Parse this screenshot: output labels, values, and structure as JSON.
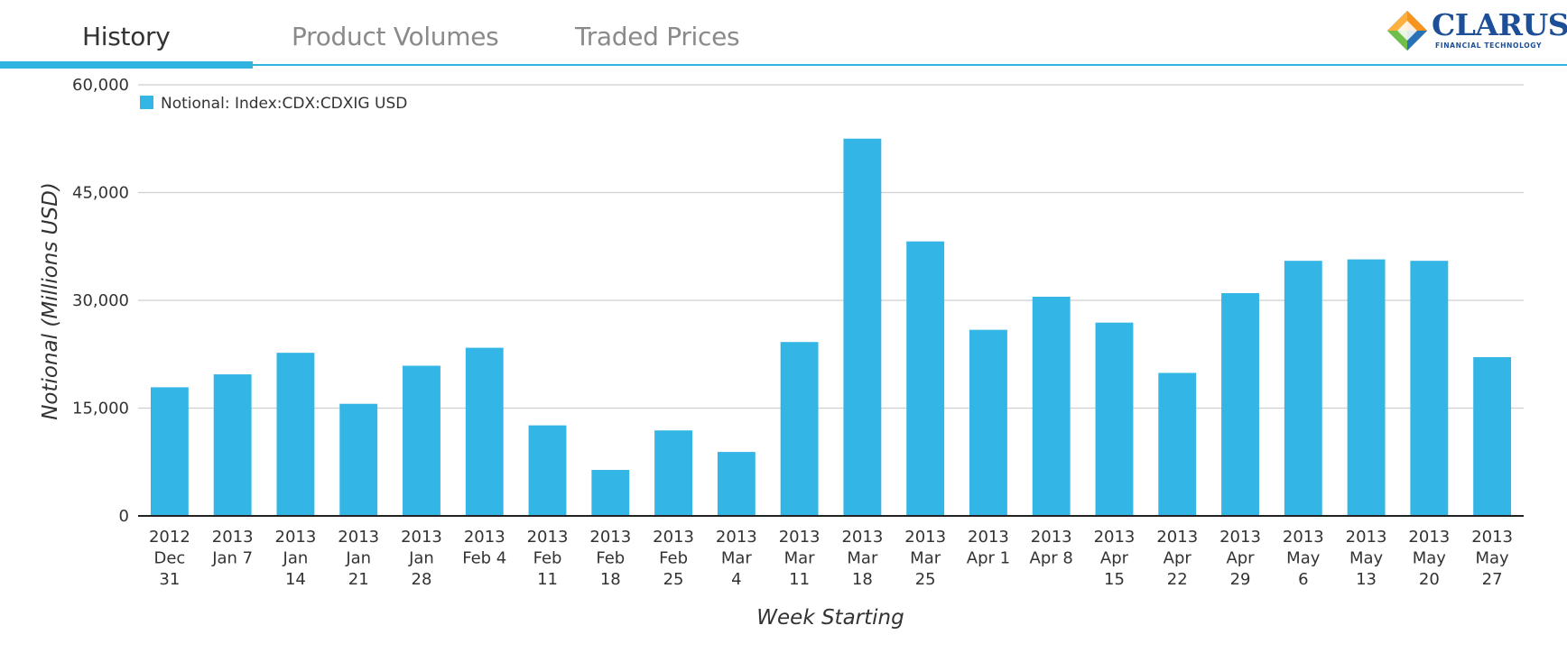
{
  "tabs": [
    {
      "label": "History",
      "active": true
    },
    {
      "label": "Product Volumes",
      "active": false
    },
    {
      "label": "Traded Prices",
      "active": false
    }
  ],
  "logo": {
    "name": "CLARUS",
    "subtitle": "FINANCIAL TECHNOLOGY"
  },
  "colors": {
    "accent": "#2fb3df",
    "bar": "#33b5e5",
    "logo_blue": "#1c4f97",
    "logo_orange": "#f7941d"
  },
  "chart_data": {
    "type": "bar",
    "legend": {
      "entries": [
        "Notional: Index:CDX:CDXIG USD"
      ],
      "placement": "top-left"
    },
    "xlabel": "Week Starting",
    "ylabel": "Notional (Millions USD)",
    "ylim": [
      0,
      60000
    ],
    "yticks": [
      "0",
      "15,000",
      "30,000",
      "45,000",
      "60,000"
    ],
    "grid": true,
    "categories": [
      [
        "2012",
        "Dec",
        "31"
      ],
      [
        "2013",
        "Jan 7"
      ],
      [
        "2013",
        "Jan",
        "14"
      ],
      [
        "2013",
        "Jan",
        "21"
      ],
      [
        "2013",
        "Jan",
        "28"
      ],
      [
        "2013",
        "Feb 4"
      ],
      [
        "2013",
        "Feb",
        "11"
      ],
      [
        "2013",
        "Feb",
        "18"
      ],
      [
        "2013",
        "Feb",
        "25"
      ],
      [
        "2013",
        "Mar",
        "4"
      ],
      [
        "2013",
        "Mar",
        "11"
      ],
      [
        "2013",
        "Mar",
        "18"
      ],
      [
        "2013",
        "Mar",
        "25"
      ],
      [
        "2013",
        "Apr 1"
      ],
      [
        "2013",
        "Apr 8"
      ],
      [
        "2013",
        "Apr",
        "15"
      ],
      [
        "2013",
        "Apr",
        "22"
      ],
      [
        "2013",
        "Apr",
        "29"
      ],
      [
        "2013",
        "May",
        "6"
      ],
      [
        "2013",
        "May",
        "13"
      ],
      [
        "2013",
        "May",
        "20"
      ],
      [
        "2013",
        "May",
        "27"
      ]
    ],
    "series": [
      {
        "name": "Notional: Index:CDX:CDXIG USD",
        "values": [
          17900,
          19700,
          22700,
          15600,
          20900,
          23400,
          12600,
          6400,
          11900,
          8900,
          24200,
          52500,
          38200,
          25900,
          30500,
          26900,
          19900,
          31000,
          35500,
          35700,
          35500,
          22100
        ]
      }
    ]
  }
}
